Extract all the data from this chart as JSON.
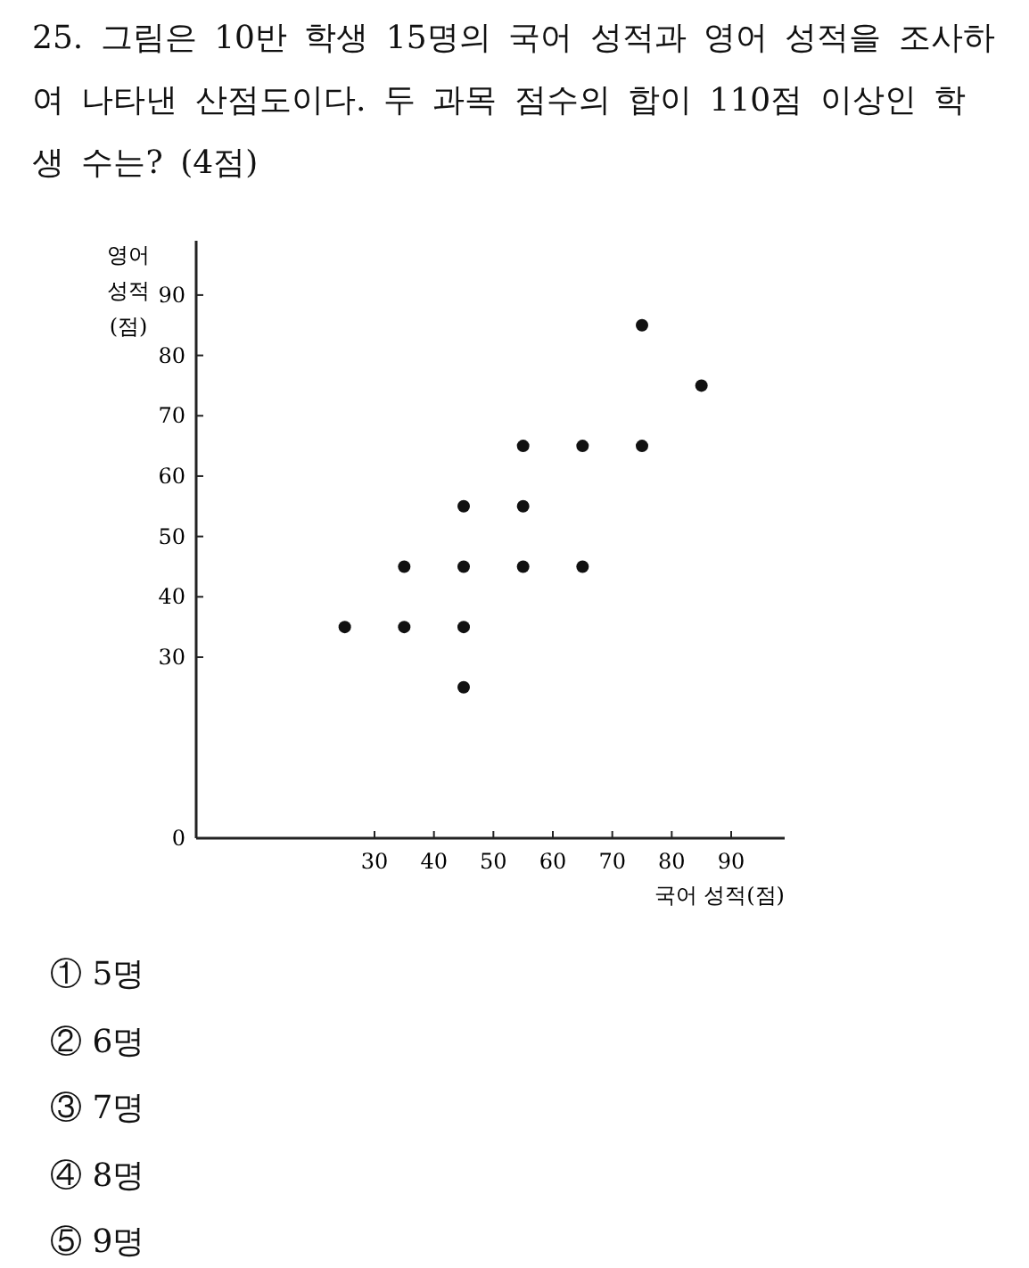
{
  "chart_data": {
    "type": "scatter",
    "title": "25. 그림은 10반 학생 15명의 국어 성적과 영어 성적을 조사하여 나타낸 산점도이다. 두 과목 점수의 합이 110점 이상인 학생 수는? (4점)",
    "xlabel": "국어 성적(점)",
    "ylabel": "영어 성적(점)",
    "xlim": [
      0,
      99
    ],
    "ylim": [
      0,
      99
    ],
    "xticks": [
      30,
      40,
      50,
      60,
      70,
      80,
      90
    ],
    "yticks": [
      0,
      30,
      40,
      50,
      60,
      70,
      80,
      90
    ],
    "marker": "circle",
    "series": [
      {
        "color": "#111111",
        "x": [
          25,
          35,
          35,
          45,
          45,
          45,
          45,
          55,
          55,
          55,
          65,
          65,
          75,
          75,
          85
        ],
        "values": [
          35,
          45,
          35,
          55,
          45,
          35,
          25,
          65,
          55,
          45,
          65,
          45,
          85,
          65,
          75
        ]
      }
    ],
    "annotations": [
      "① 5명",
      "② 6명",
      "③ 7명",
      "④ 8명",
      "⑤ 9명"
    ]
  }
}
